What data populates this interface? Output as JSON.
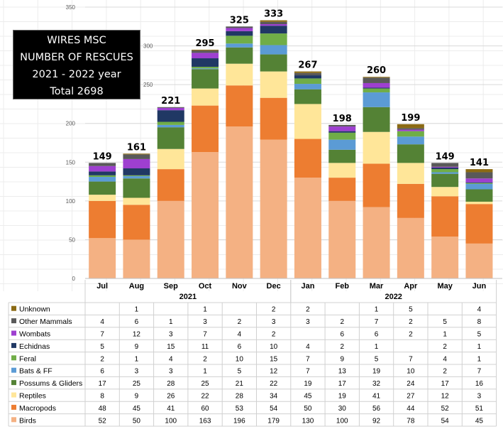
{
  "chart_data": {
    "type": "bar",
    "stacked": true,
    "title_lines": [
      "WIRES MSC",
      "NUMBER OF RESCUES",
      "2021 - 2022 year",
      "Total 2698"
    ],
    "categories": [
      "Jul",
      "Aug",
      "Sep",
      "Oct",
      "Nov",
      "Dec",
      "Jan",
      "Feb",
      "Mar",
      "Apr",
      "May",
      "Jun"
    ],
    "year_groups": [
      {
        "label": "2021",
        "span": 6
      },
      {
        "label": "2022",
        "span": 6
      }
    ],
    "totals": [
      149,
      161,
      221,
      295,
      325,
      333,
      267,
      198,
      260,
      199,
      149,
      141
    ],
    "ylim": [
      0,
      350
    ],
    "yticks": [
      0,
      50,
      100,
      150,
      200,
      250,
      300,
      350
    ],
    "grid": true,
    "legend": "table-left",
    "series": [
      {
        "name": "Birds",
        "color": "#F4B183",
        "values": [
          52,
          50,
          100,
          163,
          196,
          179,
          130,
          100,
          92,
          78,
          54,
          45
        ]
      },
      {
        "name": "Macropods",
        "color": "#ED7D31",
        "values": [
          48,
          45,
          41,
          60,
          53,
          54,
          50,
          30,
          56,
          44,
          52,
          51
        ]
      },
      {
        "name": "Reptiles",
        "color": "#FFE699",
        "values": [
          8,
          9,
          26,
          22,
          28,
          34,
          45,
          19,
          41,
          27,
          12,
          3
        ]
      },
      {
        "name": "Possums & Gliders",
        "color": "#548235",
        "values": [
          17,
          25,
          28,
          25,
          21,
          22,
          19,
          17,
          32,
          24,
          17,
          16
        ]
      },
      {
        "name": "Bats & FF",
        "color": "#5B9BD5",
        "values": [
          6,
          3,
          3,
          1,
          5,
          12,
          7,
          13,
          19,
          10,
          2,
          7
        ]
      },
      {
        "name": "Feral",
        "color": "#70AD47",
        "values": [
          2,
          1,
          4,
          2,
          10,
          15,
          7,
          9,
          5,
          7,
          4,
          1
        ]
      },
      {
        "name": "Echidnas",
        "color": "#203864",
        "values": [
          5,
          9,
          15,
          11,
          6,
          10,
          4,
          2,
          1,
          null,
          2,
          1
        ]
      },
      {
        "name": "Wombats",
        "color": "#9E3FD0",
        "values": [
          7,
          12,
          3,
          7,
          4,
          2,
          null,
          6,
          6,
          2,
          1,
          5
        ]
      },
      {
        "name": "Other Mammals",
        "color": "#595959",
        "values": [
          4,
          6,
          1,
          3,
          2,
          3,
          3,
          2,
          7,
          2,
          5,
          8
        ]
      },
      {
        "name": "Unknown",
        "color": "#8B6A14",
        "values": [
          null,
          1,
          null,
          1,
          null,
          2,
          2,
          null,
          1,
          5,
          null,
          4
        ]
      }
    ]
  }
}
